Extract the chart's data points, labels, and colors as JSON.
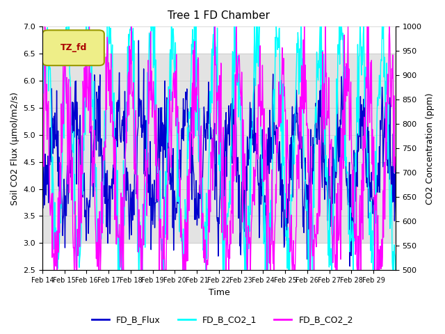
{
  "title": "Tree 1 FD Chamber",
  "xlabel": "Time",
  "ylabel_left": "Soil CO2 Flux (μmol/m2/s)",
  "ylabel_right": "CO2 Concentration (ppm)",
  "ylim_left": [
    2.5,
    7.0
  ],
  "ylim_right": [
    500,
    1000
  ],
  "yticks_left": [
    2.5,
    3.0,
    3.5,
    4.0,
    4.5,
    5.0,
    5.5,
    6.0,
    6.5,
    7.0
  ],
  "yticks_right": [
    500,
    550,
    600,
    650,
    700,
    750,
    800,
    850,
    900,
    950,
    1000
  ],
  "xticklabels": [
    "Feb 14",
    "Feb 15",
    "Feb 16",
    "Feb 17",
    "Feb 18",
    "Feb 19",
    "Feb 20",
    "Feb 21",
    "Feb 22",
    "Feb 23",
    "Feb 24",
    "Feb 25",
    "Feb 26",
    "Feb 27",
    "Feb 28",
    "Feb 29"
  ],
  "legend_labels": [
    "FD_B_Flux",
    "FD_B_CO2_1",
    "FD_B_CO2_2"
  ],
  "colors": {
    "flux": "#0000CD",
    "co2_1": "#00FFFF",
    "co2_2": "#FF00FF"
  },
  "tz_label": "TZ_fd",
  "tz_text_color": "#AA0000",
  "tz_box_color": "#EEEE88",
  "tz_box_edge_color": "#999900",
  "shaded_band": [
    3.0,
    6.5
  ],
  "shaded_color": "#d8d8d8",
  "background_color": "#ffffff",
  "grid_color": "#cccccc",
  "linewidth": 1.0,
  "n_days": 16,
  "n_per_day": 48
}
